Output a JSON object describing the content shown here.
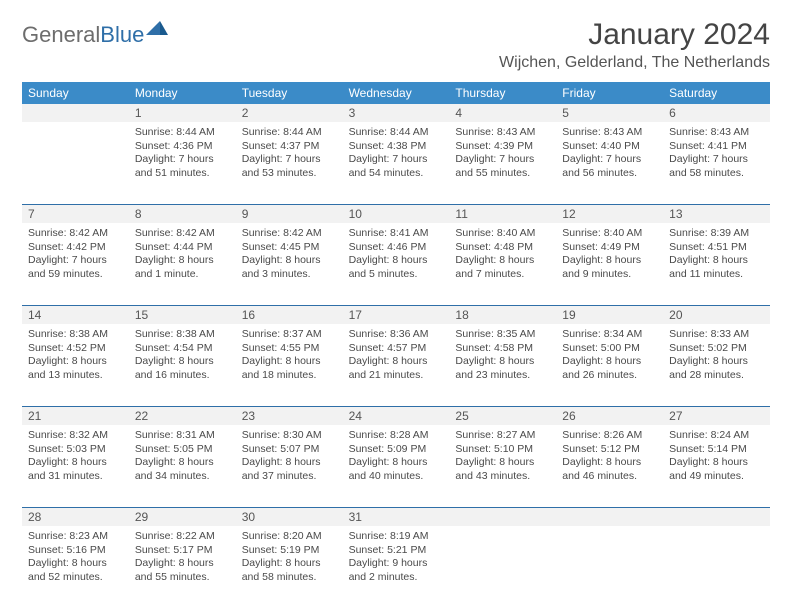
{
  "logo": {
    "textGray": "General",
    "textBlue": "Blue"
  },
  "title": "January 2024",
  "location": "Wijchen, Gelderland, The Netherlands",
  "colors": {
    "headerBg": "#3b8bc8",
    "rowDivider": "#2f6fa8",
    "dayNumBg": "#f2f2f2",
    "logoGray": "#6d6d6d",
    "logoBlue": "#2f6fa8"
  },
  "dayNames": [
    "Sunday",
    "Monday",
    "Tuesday",
    "Wednesday",
    "Thursday",
    "Friday",
    "Saturday"
  ],
  "weeks": [
    {
      "nums": [
        "",
        "1",
        "2",
        "3",
        "4",
        "5",
        "6"
      ],
      "data": [
        null,
        {
          "sunrise": "8:44 AM",
          "sunset": "4:36 PM",
          "daylight": "7 hours and 51 minutes."
        },
        {
          "sunrise": "8:44 AM",
          "sunset": "4:37 PM",
          "daylight": "7 hours and 53 minutes."
        },
        {
          "sunrise": "8:44 AM",
          "sunset": "4:38 PM",
          "daylight": "7 hours and 54 minutes."
        },
        {
          "sunrise": "8:43 AM",
          "sunset": "4:39 PM",
          "daylight": "7 hours and 55 minutes."
        },
        {
          "sunrise": "8:43 AM",
          "sunset": "4:40 PM",
          "daylight": "7 hours and 56 minutes."
        },
        {
          "sunrise": "8:43 AM",
          "sunset": "4:41 PM",
          "daylight": "7 hours and 58 minutes."
        }
      ]
    },
    {
      "nums": [
        "7",
        "8",
        "9",
        "10",
        "11",
        "12",
        "13"
      ],
      "data": [
        {
          "sunrise": "8:42 AM",
          "sunset": "4:42 PM",
          "daylight": "7 hours and 59 minutes."
        },
        {
          "sunrise": "8:42 AM",
          "sunset": "4:44 PM",
          "daylight": "8 hours and 1 minute."
        },
        {
          "sunrise": "8:42 AM",
          "sunset": "4:45 PM",
          "daylight": "8 hours and 3 minutes."
        },
        {
          "sunrise": "8:41 AM",
          "sunset": "4:46 PM",
          "daylight": "8 hours and 5 minutes."
        },
        {
          "sunrise": "8:40 AM",
          "sunset": "4:48 PM",
          "daylight": "8 hours and 7 minutes."
        },
        {
          "sunrise": "8:40 AM",
          "sunset": "4:49 PM",
          "daylight": "8 hours and 9 minutes."
        },
        {
          "sunrise": "8:39 AM",
          "sunset": "4:51 PM",
          "daylight": "8 hours and 11 minutes."
        }
      ]
    },
    {
      "nums": [
        "14",
        "15",
        "16",
        "17",
        "18",
        "19",
        "20"
      ],
      "data": [
        {
          "sunrise": "8:38 AM",
          "sunset": "4:52 PM",
          "daylight": "8 hours and 13 minutes."
        },
        {
          "sunrise": "8:38 AM",
          "sunset": "4:54 PM",
          "daylight": "8 hours and 16 minutes."
        },
        {
          "sunrise": "8:37 AM",
          "sunset": "4:55 PM",
          "daylight": "8 hours and 18 minutes."
        },
        {
          "sunrise": "8:36 AM",
          "sunset": "4:57 PM",
          "daylight": "8 hours and 21 minutes."
        },
        {
          "sunrise": "8:35 AM",
          "sunset": "4:58 PM",
          "daylight": "8 hours and 23 minutes."
        },
        {
          "sunrise": "8:34 AM",
          "sunset": "5:00 PM",
          "daylight": "8 hours and 26 minutes."
        },
        {
          "sunrise": "8:33 AM",
          "sunset": "5:02 PM",
          "daylight": "8 hours and 28 minutes."
        }
      ]
    },
    {
      "nums": [
        "21",
        "22",
        "23",
        "24",
        "25",
        "26",
        "27"
      ],
      "data": [
        {
          "sunrise": "8:32 AM",
          "sunset": "5:03 PM",
          "daylight": "8 hours and 31 minutes."
        },
        {
          "sunrise": "8:31 AM",
          "sunset": "5:05 PM",
          "daylight": "8 hours and 34 minutes."
        },
        {
          "sunrise": "8:30 AM",
          "sunset": "5:07 PM",
          "daylight": "8 hours and 37 minutes."
        },
        {
          "sunrise": "8:28 AM",
          "sunset": "5:09 PM",
          "daylight": "8 hours and 40 minutes."
        },
        {
          "sunrise": "8:27 AM",
          "sunset": "5:10 PM",
          "daylight": "8 hours and 43 minutes."
        },
        {
          "sunrise": "8:26 AM",
          "sunset": "5:12 PM",
          "daylight": "8 hours and 46 minutes."
        },
        {
          "sunrise": "8:24 AM",
          "sunset": "5:14 PM",
          "daylight": "8 hours and 49 minutes."
        }
      ]
    },
    {
      "nums": [
        "28",
        "29",
        "30",
        "31",
        "",
        "",
        ""
      ],
      "data": [
        {
          "sunrise": "8:23 AM",
          "sunset": "5:16 PM",
          "daylight": "8 hours and 52 minutes."
        },
        {
          "sunrise": "8:22 AM",
          "sunset": "5:17 PM",
          "daylight": "8 hours and 55 minutes."
        },
        {
          "sunrise": "8:20 AM",
          "sunset": "5:19 PM",
          "daylight": "8 hours and 58 minutes."
        },
        {
          "sunrise": "8:19 AM",
          "sunset": "5:21 PM",
          "daylight": "9 hours and 2 minutes."
        },
        null,
        null,
        null
      ]
    }
  ],
  "labels": {
    "sunrise": "Sunrise:",
    "sunset": "Sunset:",
    "daylight": "Daylight:"
  }
}
